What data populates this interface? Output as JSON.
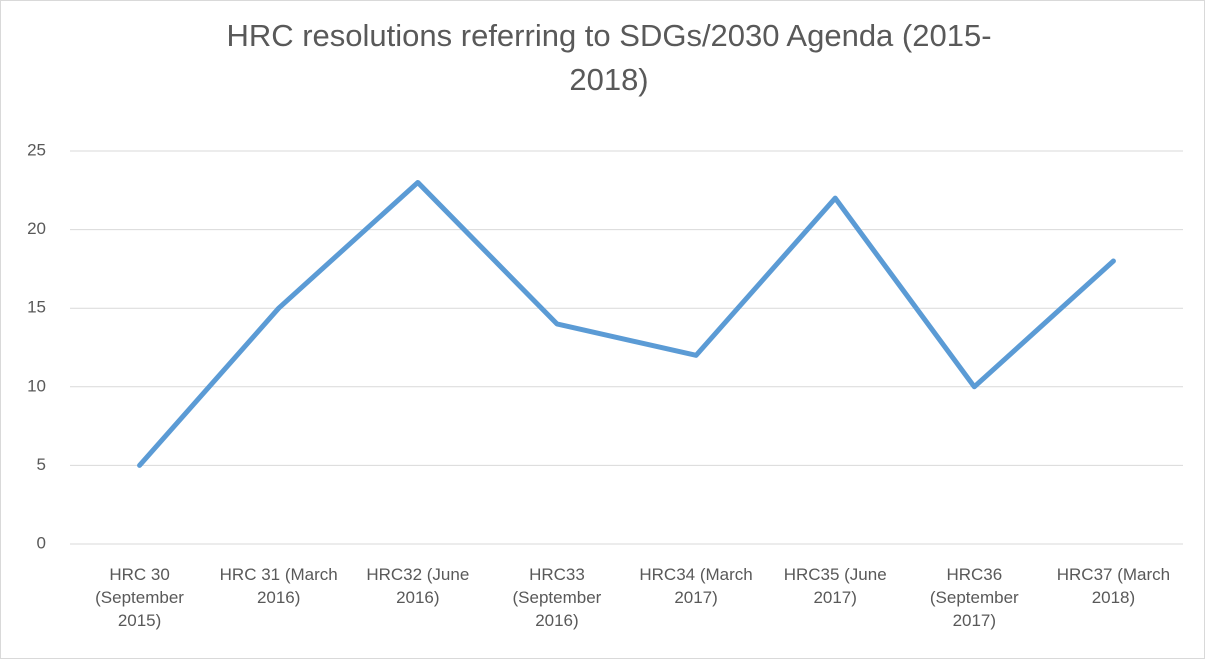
{
  "chart_data": {
    "type": "line",
    "title": "HRC resolutions referring to SDGs/2030 Agenda (2015-2018)",
    "categories": [
      "HRC 30 (September 2015)",
      "HRC 31 (March 2016)",
      "HRC32 (June 2016)",
      "HRC33 (September 2016)",
      "HRC34 (March 2017)",
      "HRC35 (June 2017)",
      "HRC36 (September 2017)",
      "HRC37 (March 2018)"
    ],
    "series": [
      {
        "name": "HRC resolutions",
        "color": "#5b9bd5",
        "values": [
          5,
          15,
          23,
          14,
          12,
          22,
          10,
          18
        ]
      }
    ],
    "ylim": [
      0,
      25
    ],
    "yticks": [
      0,
      5,
      10,
      15,
      20,
      25
    ],
    "grid": true
  }
}
